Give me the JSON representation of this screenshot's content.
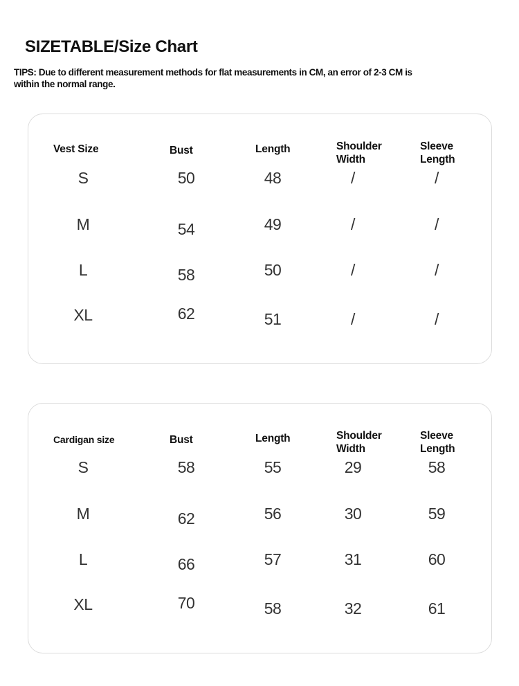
{
  "title": "SIZETABLE/Size Chart",
  "tips": "TIPS: Due to different measurement methods for flat measurements in CM, an error of 2-3 CM is within the normal range.",
  "tables": [
    {
      "headers": [
        "Vest Size",
        "Bust",
        "Length",
        "Shoulder Width",
        "Sleeve Length"
      ],
      "rows": [
        [
          "S",
          "50",
          "48",
          "/",
          "/"
        ],
        [
          "M",
          "54",
          "49",
          "/",
          "/"
        ],
        [
          "L",
          "58",
          "50",
          "/",
          "/"
        ],
        [
          "XL",
          "62",
          "51",
          "/",
          "/"
        ]
      ]
    },
    {
      "headers": [
        "Cardigan size",
        "Bust",
        "Length",
        "Shoulder Width",
        "Sleeve Length"
      ],
      "rows": [
        [
          "S",
          "58",
          "55",
          "29",
          "58"
        ],
        [
          "M",
          "62",
          "56",
          "30",
          "59"
        ],
        [
          "L",
          "66",
          "57",
          "31",
          "60"
        ],
        [
          "XL",
          "70",
          "58",
          "32",
          "61"
        ]
      ]
    }
  ]
}
